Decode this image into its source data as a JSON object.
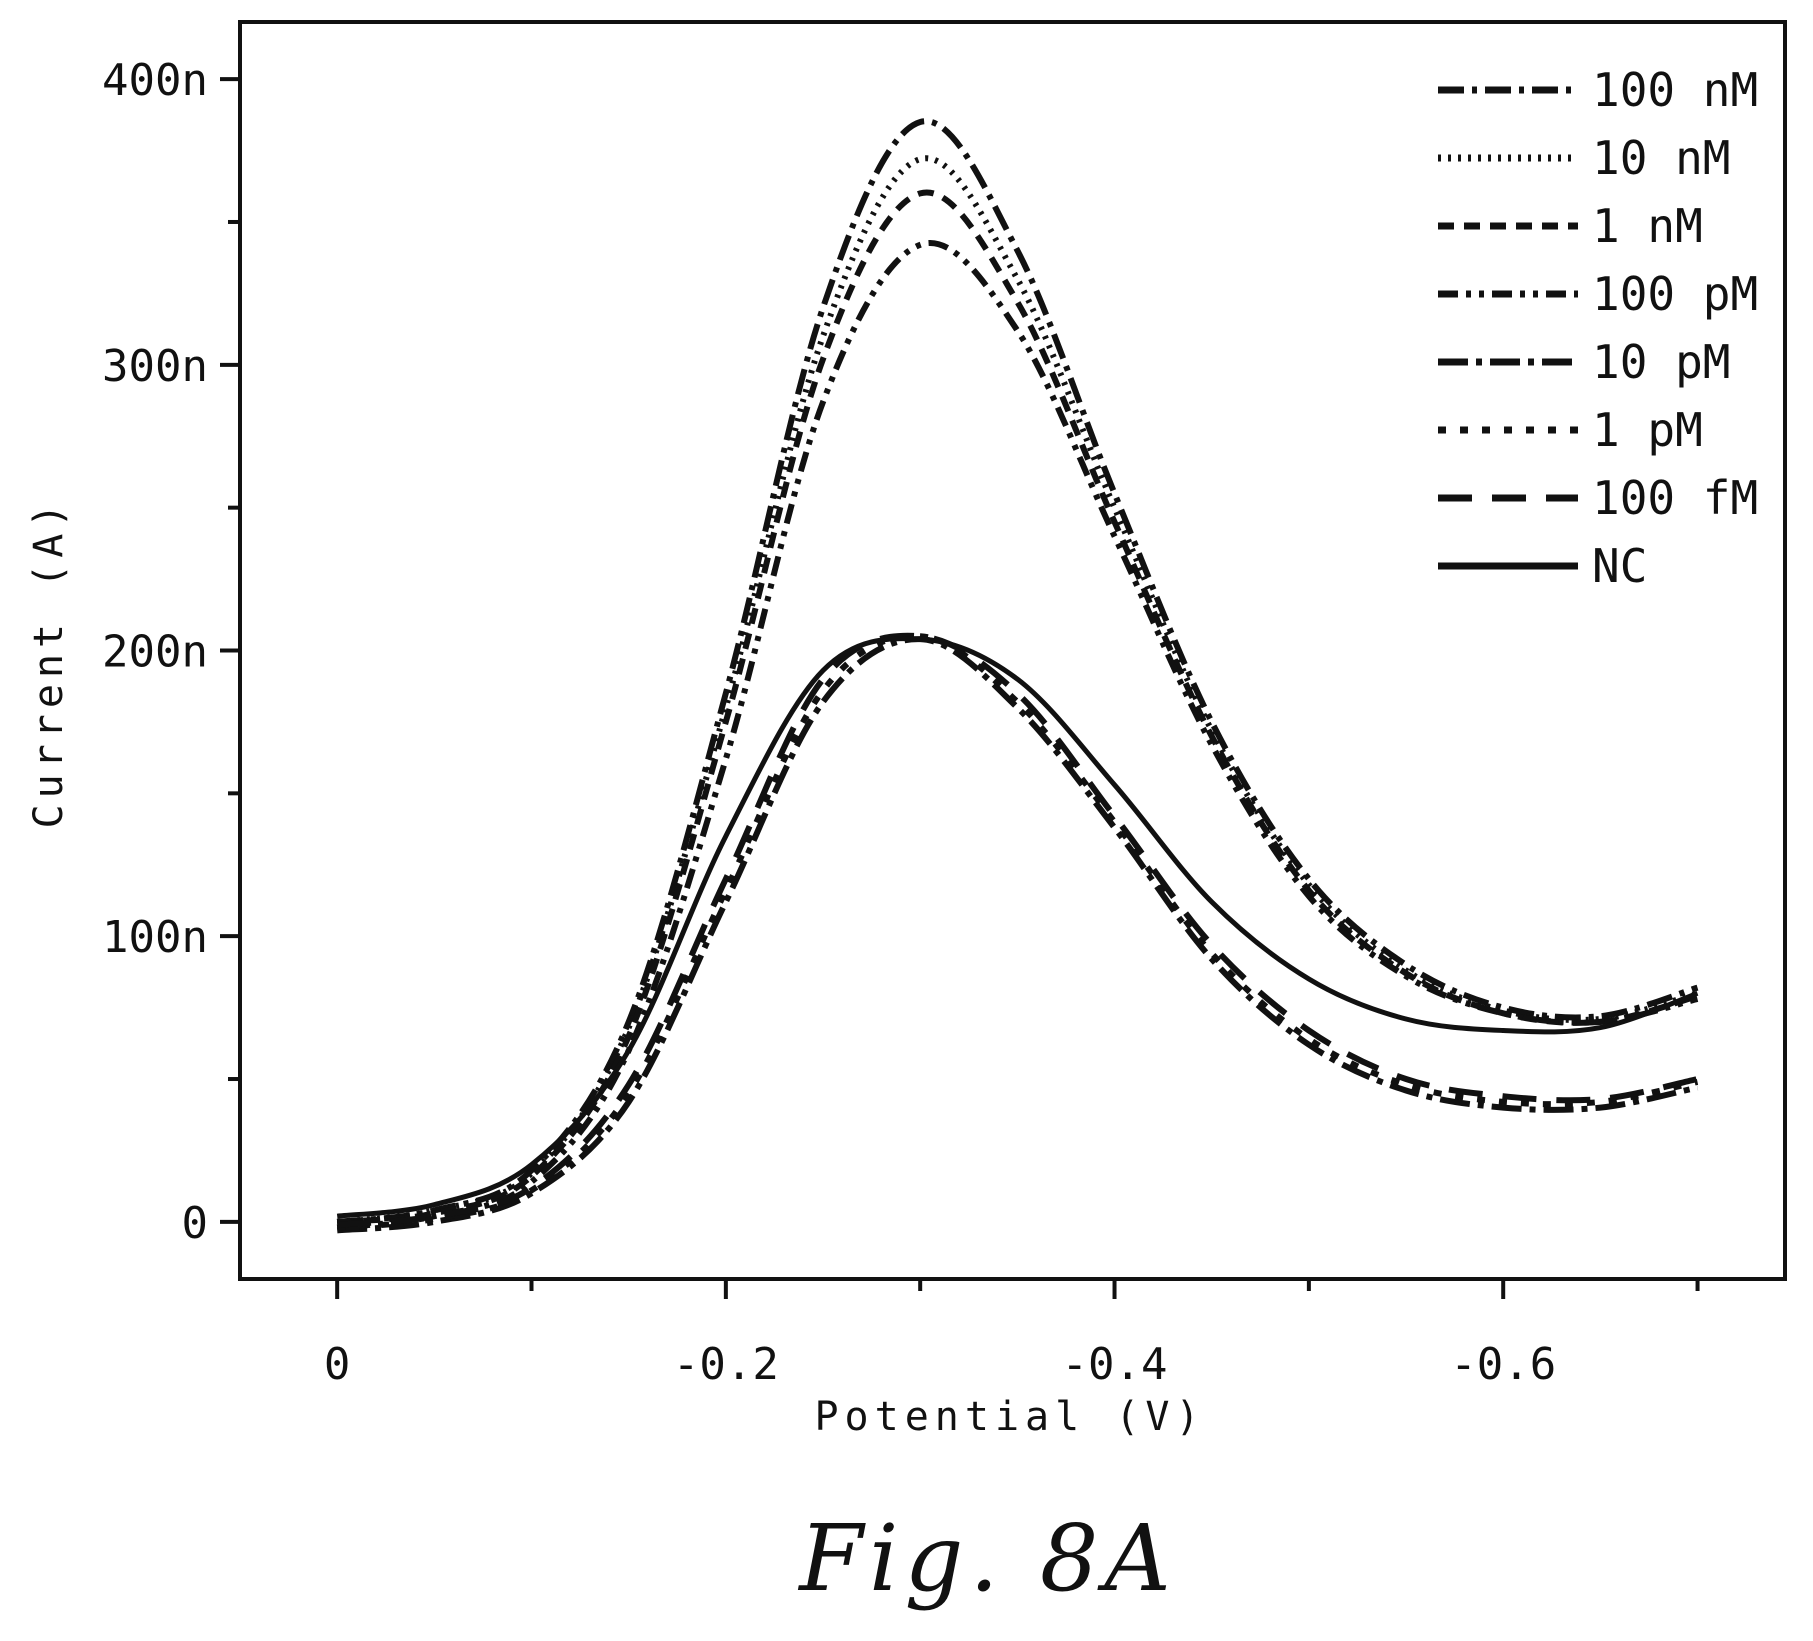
{
  "chart_data": {
    "type": "line",
    "title": "",
    "xlabel": "Potential (V)",
    "ylabel": "Current (A)",
    "caption": "Fig. 8A",
    "xlim": [
      0.05,
      -0.745
    ],
    "ylim": [
      -20,
      420
    ],
    "x_ticks": [
      {
        "value": 0,
        "label": "0"
      },
      {
        "value": -0.2,
        "label": "-0.2"
      },
      {
        "value": -0.4,
        "label": "-0.4"
      },
      {
        "value": -0.6,
        "label": "-0.6"
      }
    ],
    "x_minor_ticks": [
      -0.1,
      -0.3,
      -0.5,
      -0.7
    ],
    "y_ticks": [
      {
        "value": 0,
        "label": "0"
      },
      {
        "value": 100,
        "label": "100n"
      },
      {
        "value": 200,
        "label": "200n"
      },
      {
        "value": 300,
        "label": "300n"
      },
      {
        "value": 400,
        "label": "400n"
      }
    ],
    "y_minor_ticks": [
      50,
      150,
      250,
      350
    ],
    "y_unit": "nA",
    "grid": false,
    "legend_position": "top-right",
    "x": [
      0.0,
      -0.05,
      -0.1,
      -0.15,
      -0.2,
      -0.25,
      -0.3,
      -0.35,
      -0.4,
      -0.45,
      -0.5,
      -0.55,
      -0.6,
      -0.65,
      -0.7
    ],
    "series": [
      {
        "name": "100 nM",
        "dash": "26,8,5,8",
        "values": [
          0,
          4,
          18,
          70,
          185,
          320,
          385,
          340,
          255,
          175,
          120,
          90,
          75,
          72,
          82
        ]
      },
      {
        "name": "10 nM",
        "dash": "3,7",
        "values": [
          0,
          4,
          17,
          68,
          180,
          310,
          372,
          330,
          250,
          172,
          118,
          88,
          74,
          71,
          80
        ]
      },
      {
        "name": "1 nM",
        "dash": "16,10",
        "values": [
          0,
          3,
          16,
          65,
          175,
          302,
          360,
          322,
          245,
          170,
          116,
          87,
          73,
          70,
          79
        ]
      },
      {
        "name": "100 pM",
        "dash": "20,8,5,8,5,8",
        "values": [
          -2,
          2,
          14,
          60,
          162,
          287,
          342,
          312,
          240,
          167,
          114,
          86,
          73,
          70,
          78
        ]
      },
      {
        "name": "10 pM",
        "dash": "30,8,6,8",
        "values": [
          -3,
          0,
          10,
          42,
          112,
          182,
          204,
          180,
          138,
          92,
          62,
          46,
          40,
          40,
          47
        ]
      },
      {
        "name": "1 pM",
        "dash": "8,14",
        "values": [
          -2,
          1,
          11,
          45,
          116,
          186,
          205,
          182,
          140,
          94,
          64,
          48,
          42,
          42,
          49
        ]
      },
      {
        "name": "100 fM",
        "dash": "34,20",
        "values": [
          -1,
          2,
          12,
          48,
          120,
          190,
          205,
          185,
          142,
          97,
          67,
          50,
          44,
          43,
          50
        ]
      },
      {
        "name": "NC",
        "dash": "",
        "values": [
          2,
          6,
          20,
          60,
          135,
          193,
          204,
          190,
          153,
          112,
          85,
          71,
          67,
          68,
          80
        ]
      }
    ]
  }
}
